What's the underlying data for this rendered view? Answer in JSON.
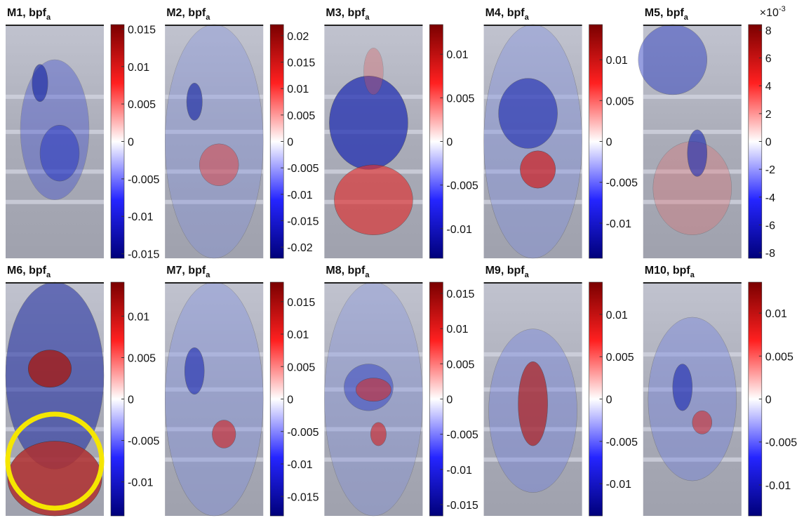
{
  "chart_data": [
    {
      "type": "heatmap",
      "title": "M1, bpf",
      "title_subscript": "a",
      "clim": [
        -0.0156,
        0.0156
      ],
      "cticks": [
        -0.015,
        -0.01,
        -0.005,
        0,
        0.005,
        0.01,
        0.015
      ]
    },
    {
      "type": "heatmap",
      "title": "M2, bpf",
      "title_subscript": "a",
      "clim": [
        -0.0221,
        0.0221
      ],
      "cticks": [
        -0.02,
        -0.015,
        -0.01,
        -0.005,
        0,
        0.005,
        0.01,
        0.015,
        0.02
      ]
    },
    {
      "type": "heatmap",
      "title": "M3, bpf",
      "title_subscript": "a",
      "clim": [
        -0.0134,
        0.0134
      ],
      "cticks": [
        -0.01,
        -0.005,
        0,
        0.005,
        0.01
      ]
    },
    {
      "type": "heatmap",
      "title": "M4, bpf",
      "title_subscript": "a",
      "clim": [
        -0.0143,
        0.0143
      ],
      "cticks": [
        -0.01,
        -0.005,
        0,
        0.005,
        0.01
      ]
    },
    {
      "type": "heatmap",
      "title": "M5, bpf",
      "title_subscript": "a",
      "clim": [
        -8.4,
        8.4
      ],
      "cticks": [
        -8,
        -6,
        -4,
        -2,
        0,
        2,
        4,
        6,
        8
      ],
      "cscale_base": "×10",
      "cscale_exponent": "-3"
    },
    {
      "type": "heatmap",
      "title": "M6, bpf",
      "title_subscript": "a",
      "clim": [
        -0.0141,
        0.0141
      ],
      "cticks": [
        -0.01,
        -0.005,
        0,
        0.005,
        0.01
      ]
    },
    {
      "type": "heatmap",
      "title": "M7, bpf",
      "title_subscript": "a",
      "clim": [
        -0.018,
        0.018
      ],
      "cticks": [
        -0.015,
        -0.01,
        -0.005,
        0,
        0.005,
        0.01,
        0.015
      ]
    },
    {
      "type": "heatmap",
      "title": "M8, bpf",
      "title_subscript": "a",
      "clim": [
        -0.0166,
        0.0166
      ],
      "cticks": [
        -0.015,
        -0.01,
        -0.005,
        0,
        0.005,
        0.01,
        0.015
      ]
    },
    {
      "type": "heatmap",
      "title": "M9, bpf",
      "title_subscript": "a",
      "clim": [
        -0.0138,
        0.0138
      ],
      "cticks": [
        -0.01,
        -0.005,
        0,
        0.005,
        0.01
      ]
    },
    {
      "type": "heatmap",
      "title": "M10, bpf",
      "title_subscript": "a",
      "clim": [
        -0.0136,
        0.0136
      ],
      "cticks": [
        -0.01,
        -0.005,
        0,
        0.005,
        0.01
      ]
    }
  ]
}
